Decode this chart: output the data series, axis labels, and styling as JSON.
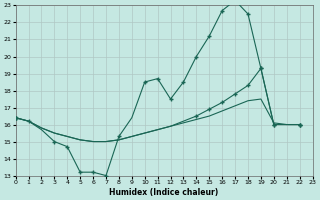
{
  "xlabel": "Humidex (Indice chaleur)",
  "xlim": [
    0,
    23
  ],
  "ylim": [
    13,
    23
  ],
  "xticks": [
    0,
    1,
    2,
    3,
    4,
    5,
    6,
    7,
    8,
    9,
    10,
    11,
    12,
    13,
    14,
    15,
    16,
    17,
    18,
    19,
    20,
    21,
    22,
    23
  ],
  "yticks": [
    13,
    14,
    15,
    16,
    17,
    18,
    19,
    20,
    21,
    22,
    23
  ],
  "bg_color": "#c5e8e2",
  "grid_color": "#b0c8c4",
  "line_color": "#1a6655",
  "line1_x": [
    0,
    1,
    2,
    3,
    4,
    5,
    6,
    7,
    8,
    9,
    10,
    11,
    12,
    13,
    14,
    15,
    16,
    17,
    18,
    19,
    20,
    21,
    22
  ],
  "line1_y": [
    16.4,
    16.2,
    15.7,
    15.0,
    14.7,
    13.2,
    13.2,
    13.0,
    15.3,
    16.4,
    18.5,
    18.7,
    17.5,
    18.5,
    20.0,
    21.2,
    22.7,
    23.3,
    22.5,
    19.3,
    16.0,
    16.0,
    16.0
  ],
  "line1_markers": [
    true,
    true,
    false,
    true,
    true,
    true,
    true,
    true,
    true,
    false,
    true,
    true,
    true,
    true,
    true,
    true,
    true,
    true,
    true,
    true,
    true,
    false,
    true
  ],
  "line2_x": [
    0,
    1,
    2,
    3,
    4,
    5,
    6,
    7,
    8,
    9,
    10,
    11,
    12,
    13,
    14,
    15,
    16,
    17,
    18,
    19,
    20,
    21,
    22
  ],
  "line2_y": [
    16.4,
    16.2,
    15.8,
    15.5,
    15.3,
    15.1,
    15.0,
    15.0,
    15.1,
    15.3,
    15.5,
    15.7,
    15.9,
    16.2,
    16.5,
    16.9,
    17.3,
    17.8,
    18.3,
    19.3,
    16.0,
    16.0,
    16.0
  ],
  "line2_markers": [
    true,
    false,
    false,
    false,
    false,
    false,
    false,
    false,
    false,
    false,
    false,
    false,
    false,
    false,
    true,
    true,
    true,
    true,
    true,
    true,
    true,
    false,
    true
  ],
  "line3_x": [
    0,
    1,
    2,
    3,
    4,
    5,
    6,
    7,
    8,
    9,
    10,
    11,
    12,
    13,
    14,
    15,
    16,
    17,
    18,
    19,
    20,
    21,
    22
  ],
  "line3_y": [
    16.4,
    16.2,
    15.8,
    15.5,
    15.3,
    15.1,
    15.0,
    15.0,
    15.1,
    15.3,
    15.5,
    15.7,
    15.9,
    16.1,
    16.3,
    16.5,
    16.8,
    17.1,
    17.4,
    17.5,
    16.1,
    16.0,
    16.0
  ],
  "line3_markers": [
    true,
    false,
    false,
    false,
    false,
    false,
    false,
    false,
    false,
    false,
    false,
    false,
    false,
    false,
    false,
    false,
    false,
    false,
    false,
    false,
    false,
    false,
    true
  ]
}
